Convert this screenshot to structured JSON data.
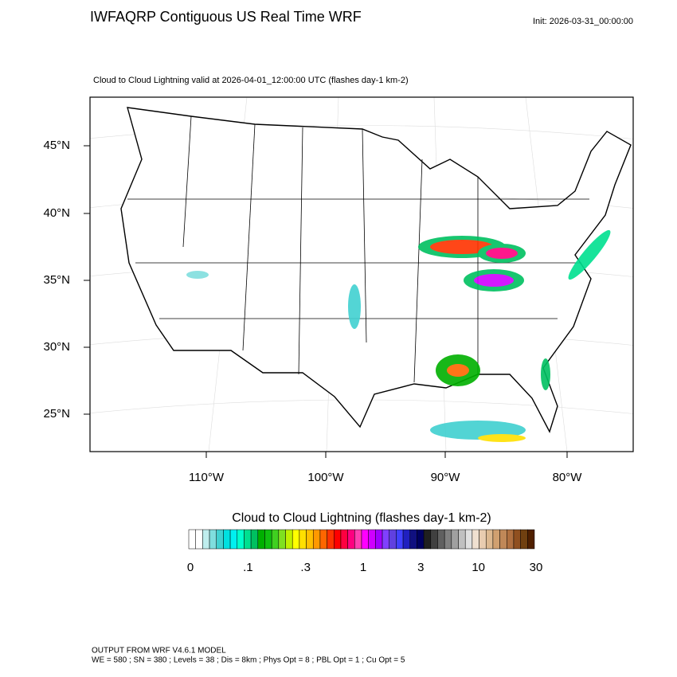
{
  "header": {
    "title": "IWFAQRP Contiguous US Real Time WRF",
    "init": "Init: 2026-03-31_00:00:00"
  },
  "map": {
    "subtitle": "Cloud to Cloud Lightning valid at 2026-04-01_12:00:00 UTC   (flashes day-1 km-2)",
    "lat_labels": [
      "45°N",
      "40°N",
      "35°N",
      "30°N",
      "25°N"
    ],
    "lon_labels": [
      "110°W",
      "100°W",
      "90°W",
      "80°W"
    ]
  },
  "colorbar": {
    "title": "Cloud to Cloud Lightning  (flashes day-1 km-2)",
    "labels": [
      "0",
      ".1",
      ".3",
      "1",
      "3",
      "10",
      "30"
    ],
    "colors": [
      "#ffffff",
      "#ffffff",
      "#bfeeee",
      "#7fdede",
      "#40d0d0",
      "#00e0e0",
      "#00f0f0",
      "#00ffcc",
      "#00e090",
      "#00c060",
      "#00b000",
      "#10c010",
      "#40d020",
      "#80e020",
      "#c0f000",
      "#ffff00",
      "#ffe000",
      "#ffc000",
      "#ff9900",
      "#ff6600",
      "#ff3300",
      "#ff0000",
      "#ff0040",
      "#ff0080",
      "#ff40b0",
      "#ff00ff",
      "#d000ff",
      "#a000ff",
      "#8040ff",
      "#6040e0",
      "#4040ff",
      "#2020c0",
      "#101080",
      "#000060",
      "#202020",
      "#404040",
      "#606060",
      "#808080",
      "#a0a0a0",
      "#c0c0c0",
      "#e0e0e0",
      "#f0e0d0",
      "#e8ccb0",
      "#dcb890",
      "#d0a070",
      "#c08858",
      "#b07040",
      "#905020",
      "#704010",
      "#502000"
    ]
  },
  "footer": {
    "line1": "OUTPUT FROM WRF V4.6.1 MODEL",
    "line2": "WE = 580 ; SN = 380 ; Levels = 38 ; Dis = 8km ; Phys Opt = 8 ; PBL Opt = 1 ; Cu Opt = 5"
  }
}
